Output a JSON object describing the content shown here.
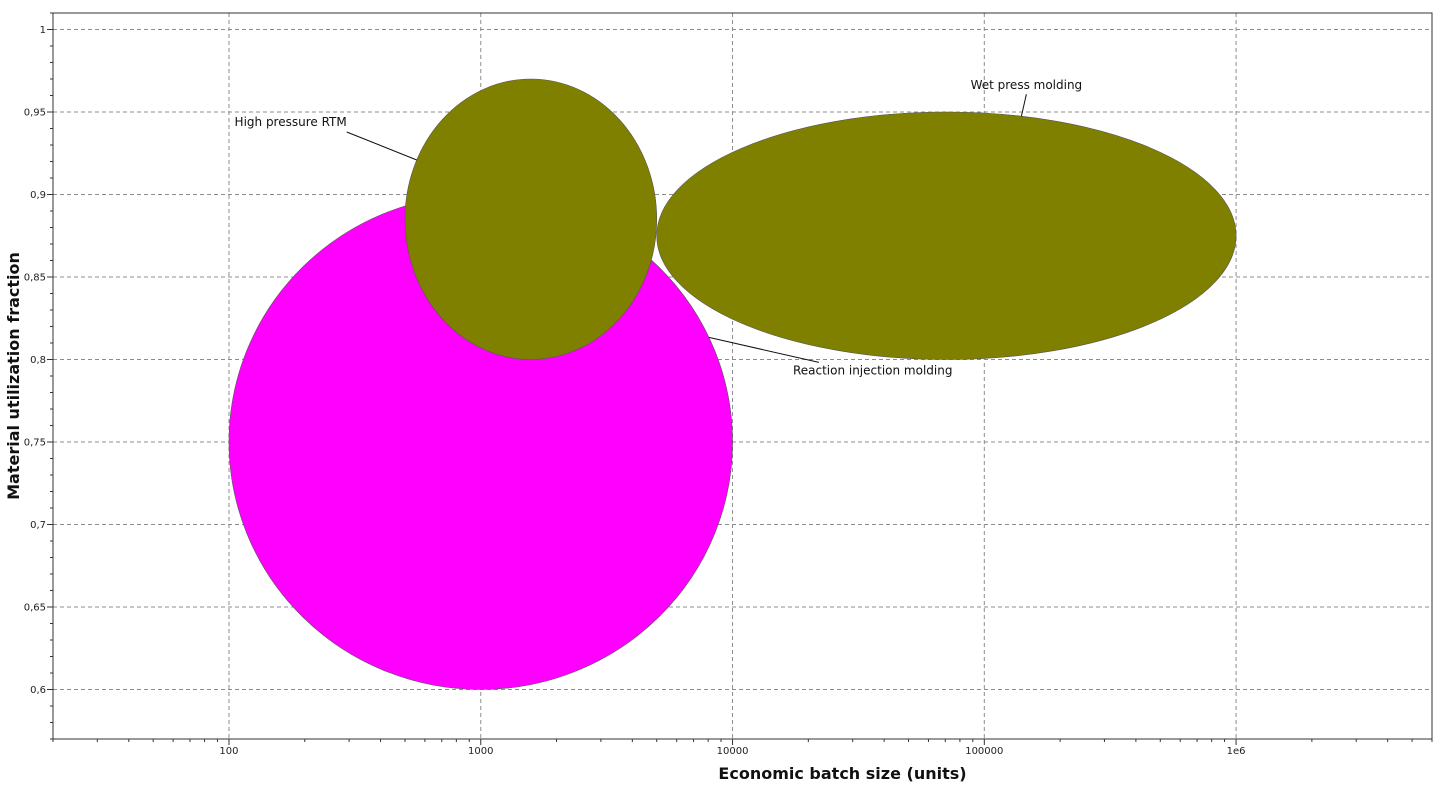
{
  "chart_data": {
    "type": "bubble",
    "xlabel": "Economic batch size (units)",
    "ylabel": "Material utilization fraction",
    "x_scale": "log",
    "xlim": [
      20,
      6000000
    ],
    "ylim": [
      0.57,
      1.01
    ],
    "x_ticks": [
      {
        "value": 100,
        "label": "100"
      },
      {
        "value": 1000,
        "label": "1000"
      },
      {
        "value": 10000,
        "label": "10000"
      },
      {
        "value": 100000,
        "label": "100000"
      },
      {
        "value": 1000000,
        "label": "1e6"
      }
    ],
    "y_ticks": [
      {
        "value": 0.6,
        "label": "0,6"
      },
      {
        "value": 0.65,
        "label": "0,65"
      },
      {
        "value": 0.7,
        "label": "0,7"
      },
      {
        "value": 0.75,
        "label": "0,75"
      },
      {
        "value": 0.8,
        "label": "0,8"
      },
      {
        "value": 0.85,
        "label": "0,85"
      },
      {
        "value": 0.9,
        "label": "0,9"
      },
      {
        "value": 0.95,
        "label": "0,95"
      },
      {
        "value": 1,
        "label": "1"
      }
    ],
    "grid": true,
    "bubbles": [
      {
        "name": "Reaction injection molding",
        "x_range": [
          100,
          10000
        ],
        "y_range": [
          0.6,
          0.9
        ],
        "color": "#ff00ff"
      },
      {
        "name": "High pressure RTM",
        "x_range": [
          500,
          5000
        ],
        "y_range": [
          0.8,
          0.97
        ],
        "color": "#808000"
      },
      {
        "name": "Wet press molding",
        "x_range": [
          5000,
          1000000
        ],
        "y_range": [
          0.8,
          0.95
        ],
        "color": "#808000"
      }
    ]
  }
}
